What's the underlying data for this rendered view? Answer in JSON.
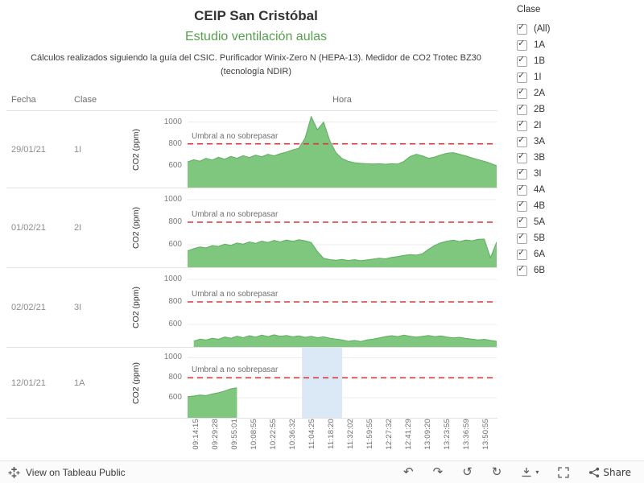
{
  "header": {
    "title": "CEIP San Cristóbal",
    "subtitle": "Estudio ventilación aulas",
    "caption": "Cálculos realizados siguiendo la guía del CSIC. Purificador Winix-Zero N (HEPA-13). Medidor de CO2 Trotec BZ30 (tecnología NDIR)"
  },
  "columns": {
    "fecha": "Fecha",
    "clase": "Clase",
    "hora": "Hora"
  },
  "icons": {
    "check": "✓"
  },
  "filter": {
    "title": "Clase",
    "items": [
      {
        "label": "(All)",
        "checked": true
      },
      {
        "label": "1A",
        "checked": true
      },
      {
        "label": "1B",
        "checked": true
      },
      {
        "label": "1I",
        "checked": true
      },
      {
        "label": "2A",
        "checked": true
      },
      {
        "label": "2B",
        "checked": true
      },
      {
        "label": "2I",
        "checked": true
      },
      {
        "label": "3A",
        "checked": true
      },
      {
        "label": "3B",
        "checked": true
      },
      {
        "label": "3I",
        "checked": true
      },
      {
        "label": "4A",
        "checked": true
      },
      {
        "label": "4B",
        "checked": true
      },
      {
        "label": "5A",
        "checked": true
      },
      {
        "label": "5B",
        "checked": true
      },
      {
        "label": "6A",
        "checked": true
      },
      {
        "label": "6B",
        "checked": true
      }
    ]
  },
  "toolbar": {
    "view_label": "View on Tableau Public",
    "share_label": "Share",
    "icons": {
      "undo": "↶",
      "redo": "↷",
      "reset": "↺",
      "refresh": "↻",
      "caret": "▾"
    }
  },
  "chart_data": {
    "type": "area",
    "title": "CEIP San Cristóbal — Estudio ventilación aulas",
    "x_axis_title": "Hora",
    "y_axis_title": "CO2 (ppm)",
    "y_ticks": [
      600,
      800,
      1000
    ],
    "y_domain": [
      400,
      1100
    ],
    "grid": true,
    "area_color": "#7fc67e",
    "area_stroke": "#5fae60",
    "threshold": {
      "value": 800,
      "label": "Umbral a no sobrepasar",
      "color": "#d63a3c",
      "style": "dashed"
    },
    "x_tick_labels": [
      "09:14:15",
      "09:29:28",
      "09:55:01",
      "10:08:55",
      "10:22:55",
      "10:36:32",
      "11:04:25",
      "11:18:20",
      "11:32:02",
      "11:59:55",
      "12:27:32",
      "12:41:29",
      "13:09:20",
      "13:23:55",
      "13:36:59",
      "13:50:55"
    ],
    "rows": [
      {
        "fecha": "29/01/21",
        "clase": "1I",
        "co2_ppm": [
          635,
          655,
          642,
          668,
          652,
          678,
          660,
          685,
          668,
          692,
          675,
          698,
          682,
          705,
          690,
          710,
          725,
          745,
          760,
          850,
          1050,
          930,
          1000,
          830,
          720,
          665,
          640,
          628,
          622,
          618,
          615,
          618,
          614,
          618,
          615,
          640,
          685,
          705,
          690,
          668,
          680,
          700,
          715,
          720,
          705,
          690,
          672,
          655,
          640,
          622,
          600
        ]
      },
      {
        "fecha": "01/02/21",
        "clase": "2I",
        "co2_ppm": [
          545,
          565,
          580,
          572,
          592,
          585,
          605,
          595,
          615,
          605,
          625,
          612,
          632,
          620,
          638,
          625,
          642,
          630,
          645,
          635,
          620,
          540,
          480,
          468,
          462,
          470,
          460,
          468,
          458,
          465,
          472,
          480,
          475,
          488,
          495,
          505,
          512,
          508,
          520,
          560,
          595,
          618,
          632,
          640,
          628,
          642,
          635,
          648,
          650,
          485,
          625
        ]
      },
      {
        "fecha": "02/02/21",
        "clase": "3I",
        "co2_ppm": [
          null,
          452,
          470,
          462,
          478,
          468,
          488,
          478,
          495,
          482,
          500,
          488,
          505,
          492,
          508,
          495,
          502,
          490,
          498,
          486,
          494,
          482,
          490,
          478,
          470,
          462,
          450,
          458,
          448,
          462,
          470,
          480,
          492,
          500,
          492,
          505,
          495,
          488,
          495,
          502,
          492,
          498,
          488,
          480,
          486,
          476,
          470,
          463,
          468,
          458,
          450
        ]
      },
      {
        "fecha": "12/01/21",
        "clase": "1A",
        "co2_ppm": [
          612,
          618,
          628,
          622,
          638,
          650,
          668,
          690,
          700,
          null,
          null,
          null,
          null,
          null,
          null,
          null,
          null,
          null,
          null,
          null,
          null,
          null,
          null,
          null,
          null,
          null,
          null,
          null,
          null,
          null,
          null,
          null,
          null,
          null,
          null,
          null,
          null,
          null,
          null,
          null,
          null,
          null,
          null,
          null,
          null,
          null,
          null,
          null,
          null,
          null,
          null
        ],
        "highlight_band": {
          "from": 0.37,
          "to": 0.5
        }
      }
    ]
  }
}
